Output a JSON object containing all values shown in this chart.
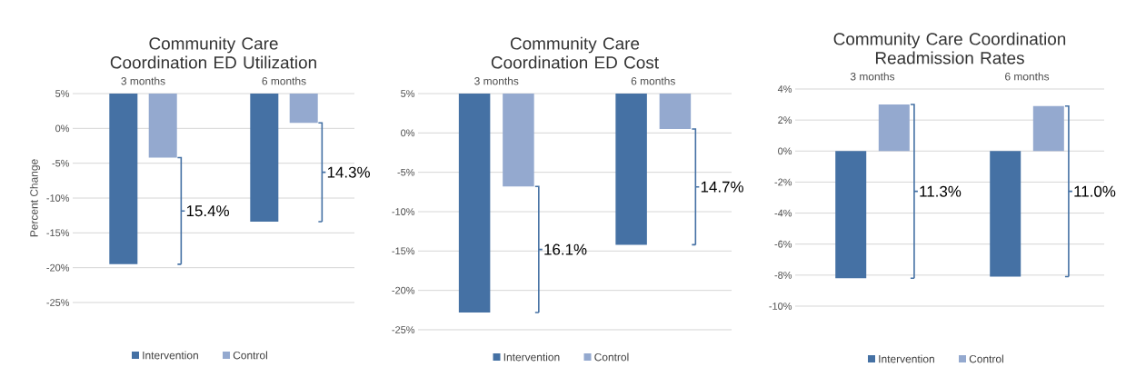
{
  "chart_data": [
    {
      "type": "bar",
      "title": "Community Care Coordination ED Utilization",
      "ylabel": "Percent Change",
      "categories": [
        "3 months",
        "6 months"
      ],
      "series": [
        {
          "name": "Intervention",
          "color": "#4571a4",
          "base": [
            5,
            5
          ],
          "values": [
            -24.5,
            -18.4
          ]
        },
        {
          "name": "Control",
          "color": "#94a9cf",
          "base": [
            5,
            5
          ],
          "values": [
            -9.2,
            -4.2
          ]
        }
      ],
      "ylim": [
        -25,
        5
      ],
      "yticks": [
        {
          "value": -25,
          "label": "-25%"
        },
        {
          "value": -20,
          "label": "-20%"
        },
        {
          "value": -15,
          "label": "-15%"
        },
        {
          "value": -10,
          "label": "-10%"
        },
        {
          "value": -5,
          "label": "-5%"
        },
        {
          "value": 0,
          "label": "0%"
        },
        {
          "value": 5,
          "label": "5%"
        }
      ],
      "grid": "y",
      "legend": "bottom",
      "annotations": [
        "15.4%",
        "14.3%"
      ]
    },
    {
      "type": "bar",
      "title": "Community Care Coordination ED Cost",
      "categories": [
        "3 months",
        "6 months"
      ],
      "series": [
        {
          "name": "Intervention",
          "color": "#4571a4",
          "base": [
            5,
            5
          ],
          "values": [
            -27.8,
            -19.2
          ]
        },
        {
          "name": "Control",
          "color": "#94a9cf",
          "base": [
            5,
            5
          ],
          "values": [
            -11.8,
            -4.5
          ]
        }
      ],
      "ylim": [
        -25,
        5
      ],
      "yticks": [
        {
          "value": -25,
          "label": "-25%"
        },
        {
          "value": -20,
          "label": "-20%"
        },
        {
          "value": -15,
          "label": "-15%"
        },
        {
          "value": -10,
          "label": "-10%"
        },
        {
          "value": -5,
          "label": "-5%"
        },
        {
          "value": 0,
          "label": "0%"
        },
        {
          "value": 5,
          "label": "5%"
        }
      ],
      "grid": "y",
      "legend": "bottom",
      "annotations": [
        "16.1%",
        "14.7%"
      ]
    },
    {
      "type": "bar",
      "title": "Community Care Coordination Readmission Rates",
      "categories": [
        "3 months",
        "6 months"
      ],
      "series": [
        {
          "name": "Intervention",
          "color": "#4571a4",
          "values": [
            -8.2,
            -8.1
          ]
        },
        {
          "name": "Control",
          "color": "#94a9cf",
          "values": [
            3.0,
            2.9
          ]
        }
      ],
      "ylim": [
        -10,
        4
      ],
      "yticks": [
        {
          "value": -10,
          "label": "-10%"
        },
        {
          "value": -8,
          "label": "-8%"
        },
        {
          "value": -6,
          "label": "-6%"
        },
        {
          "value": -4,
          "label": "-4%"
        },
        {
          "value": -2,
          "label": "-2%"
        },
        {
          "value": 0,
          "label": "0%"
        },
        {
          "value": 2,
          "label": "2%"
        },
        {
          "value": 4,
          "label": "4%"
        }
      ],
      "grid": "y",
      "legend": "bottom",
      "annotations": [
        "11.3%",
        "11.0%"
      ]
    }
  ]
}
